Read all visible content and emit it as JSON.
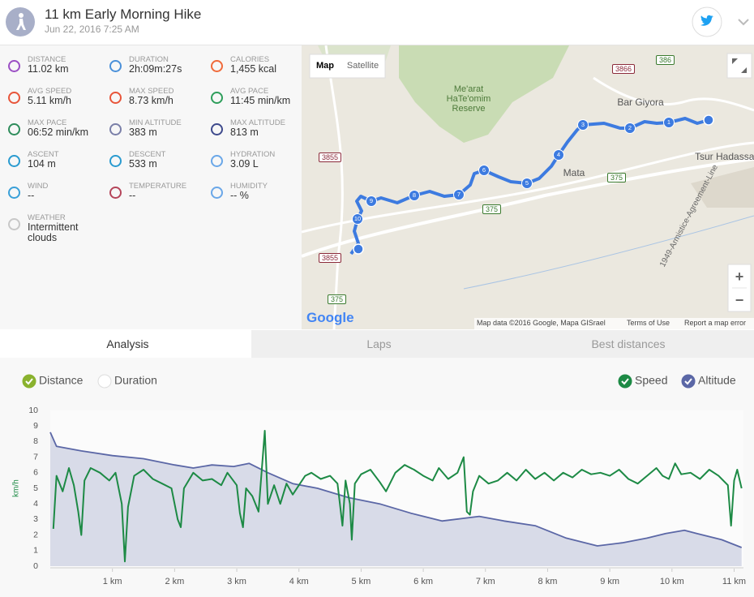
{
  "header": {
    "title": "11 km Early Morning Hike",
    "date": "Jun 22, 2016 7:25 AM"
  },
  "stats": [
    {
      "label": "DISTANCE",
      "value": "11.02 km"
    },
    {
      "label": "DURATION",
      "value": "2h:09m:27s"
    },
    {
      "label": "CALORIES",
      "value": "1,455 kcal"
    },
    {
      "label": "AVG SPEED",
      "value": "5.11 km/h"
    },
    {
      "label": "MAX SPEED",
      "value": "8.73 km/h"
    },
    {
      "label": "AVG PACE",
      "value": "11:45 min/km"
    },
    {
      "label": "MAX PACE",
      "value": "06:52 min/km"
    },
    {
      "label": "MIN ALTITUDE",
      "value": "383 m"
    },
    {
      "label": "MAX ALTITUDE",
      "value": "813 m"
    },
    {
      "label": "ASCENT",
      "value": "104 m"
    },
    {
      "label": "DESCENT",
      "value": "533 m"
    },
    {
      "label": "HYDRATION",
      "value": "3.09 L"
    },
    {
      "label": "WIND",
      "value": "--"
    },
    {
      "label": "TEMPERATURE",
      "value": "--"
    },
    {
      "label": "HUMIDITY",
      "value": "-- %"
    },
    {
      "label": "WEATHER",
      "value": "Intermittent clouds"
    }
  ],
  "map": {
    "buttons": [
      "Map",
      "Satellite"
    ],
    "places": [
      "Me'arat HaTe'omim Reserve",
      "Bar Giyora",
      "Mata",
      "Tsur Hadassah",
      "1949-Armistice-Agreement-Line"
    ],
    "roads": [
      "3866",
      "386",
      "3855",
      "3855",
      "375",
      "375",
      "375"
    ],
    "waypoints": [
      "1",
      "2",
      "3",
      "4",
      "5",
      "6",
      "7",
      "8",
      "9",
      "10"
    ],
    "logo": "Google",
    "zoom": [
      "+",
      "−"
    ],
    "attribution": [
      "Map data ©2016 Google, Mapa GISrael",
      "Terms of Use",
      "Report a map error"
    ]
  },
  "tabs": [
    "Analysis",
    "Laps",
    "Best distances"
  ],
  "chart_data": {
    "type": "line",
    "ylabel": "km/h",
    "x_modes": [
      {
        "label": "Distance",
        "checked": true
      },
      {
        "label": "Duration",
        "checked": false
      }
    ],
    "xlim": [
      0,
      11.15
    ],
    "ylim": [
      0,
      10
    ],
    "yticks": [
      0,
      1,
      2,
      3,
      4,
      5,
      6,
      7,
      8,
      9,
      10
    ],
    "xticks": [
      {
        "value": 1,
        "label": "1 km"
      },
      {
        "value": 2,
        "label": "2 km"
      },
      {
        "value": 3,
        "label": "3 km"
      },
      {
        "value": 4,
        "label": "4 km"
      },
      {
        "value": 5,
        "label": "5 km"
      },
      {
        "value": 6,
        "label": "6 km"
      },
      {
        "value": 7,
        "label": "7 km"
      },
      {
        "value": 8,
        "label": "8 km"
      },
      {
        "value": 9,
        "label": "9 km"
      },
      {
        "value": 10,
        "label": "10 km"
      },
      {
        "value": 11,
        "label": "11 km"
      }
    ],
    "grid": false,
    "series": [
      {
        "name": "Speed",
        "color": "#1d8a45",
        "checked": true,
        "x": [
          0.05,
          0.1,
          0.2,
          0.3,
          0.38,
          0.45,
          0.5,
          0.55,
          0.65,
          0.8,
          0.95,
          1.05,
          1.15,
          1.2,
          1.25,
          1.35,
          1.5,
          1.65,
          1.8,
          1.95,
          2.05,
          2.1,
          2.15,
          2.3,
          2.45,
          2.6,
          2.75,
          2.85,
          3.0,
          3.05,
          3.1,
          3.15,
          3.25,
          3.35,
          3.45,
          3.5,
          3.6,
          3.7,
          3.8,
          3.9,
          4.0,
          4.1,
          4.2,
          4.35,
          4.5,
          4.62,
          4.7,
          4.75,
          4.82,
          4.85,
          4.9,
          5.0,
          5.15,
          5.3,
          5.4,
          5.55,
          5.7,
          5.85,
          6.0,
          6.15,
          6.25,
          6.4,
          6.55,
          6.65,
          6.7,
          6.75,
          6.8,
          6.9,
          7.05,
          7.2,
          7.35,
          7.5,
          7.65,
          7.8,
          7.95,
          8.1,
          8.25,
          8.4,
          8.55,
          8.7,
          8.85,
          9.0,
          9.15,
          9.3,
          9.45,
          9.6,
          9.75,
          9.85,
          9.95,
          10.05,
          10.15,
          10.3,
          10.45,
          10.6,
          10.75,
          10.9,
          10.95,
          11.0,
          11.05,
          11.12
        ],
        "values": [
          2.4,
          5.8,
          4.8,
          6.3,
          5.2,
          3.5,
          2.0,
          5.5,
          6.3,
          6.0,
          5.5,
          6.0,
          4.0,
          0.3,
          3.8,
          5.8,
          6.2,
          5.6,
          5.3,
          5.0,
          3.0,
          2.5,
          5.0,
          6.0,
          5.5,
          5.6,
          5.2,
          6.0,
          5.2,
          3.4,
          2.5,
          5.0,
          4.5,
          3.5,
          8.7,
          4.0,
          5.2,
          4.0,
          5.3,
          4.6,
          5.2,
          5.8,
          6.0,
          5.6,
          5.8,
          5.3,
          2.6,
          5.5,
          4.0,
          1.7,
          5.3,
          5.9,
          6.2,
          5.4,
          4.8,
          6.0,
          6.5,
          6.2,
          5.8,
          5.5,
          6.3,
          5.6,
          6.0,
          7.0,
          3.5,
          3.3,
          4.8,
          5.8,
          5.3,
          5.5,
          6.0,
          5.5,
          6.2,
          5.6,
          6.0,
          5.5,
          6.0,
          5.7,
          6.2,
          5.9,
          6.0,
          5.8,
          6.2,
          5.6,
          5.3,
          5.8,
          6.3,
          5.8,
          5.6,
          6.6,
          5.9,
          6.0,
          5.6,
          6.2,
          5.8,
          5.2,
          2.6,
          5.5,
          6.2,
          5.0
        ]
      },
      {
        "name": "Altitude",
        "color": "#5b67a6",
        "checked": true,
        "x": [
          0,
          0.1,
          0.5,
          1.0,
          1.5,
          2.0,
          2.3,
          2.6,
          2.95,
          3.2,
          3.5,
          3.9,
          4.3,
          4.8,
          5.3,
          5.8,
          6.3,
          6.9,
          7.3,
          7.8,
          8.3,
          8.8,
          9.2,
          9.6,
          9.9,
          10.2,
          10.4,
          10.8,
          11.12
        ],
        "values": [
          8.6,
          7.7,
          7.4,
          7.1,
          6.9,
          6.5,
          6.3,
          6.5,
          6.4,
          6.6,
          6.0,
          5.3,
          5.0,
          4.4,
          4.0,
          3.4,
          2.9,
          3.2,
          2.9,
          2.6,
          1.8,
          1.3,
          1.5,
          1.8,
          2.1,
          2.3,
          2.1,
          1.7,
          1.2
        ]
      }
    ]
  }
}
